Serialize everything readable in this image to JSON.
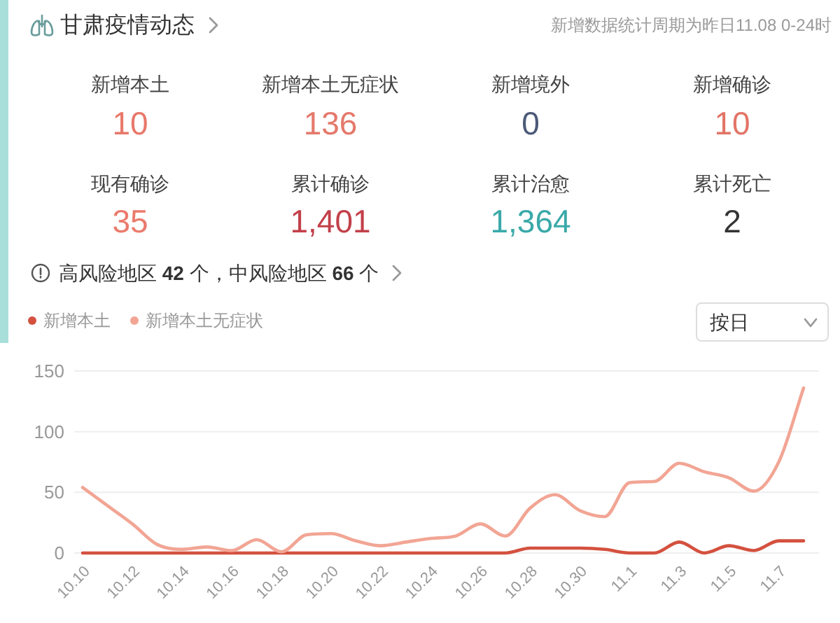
{
  "chart_data": [
    {
      "type": "other",
      "title": "甘肃疫情动态",
      "subtitle": "新增数据统计周期为昨日11.08 0-24时",
      "categories": [
        "新增本土",
        "新增本土无症状",
        "新增境外",
        "新增确诊",
        "现有确诊",
        "累计确诊",
        "累计治愈",
        "累计死亡"
      ],
      "value_labels": [
        "10",
        "136",
        "0",
        "10",
        "35",
        "1,401",
        "1,364",
        "2"
      ],
      "colors": [
        "#e8786a",
        "#e4796b",
        "#4c5a78",
        "#e27466",
        "#ea7b6d",
        "#c2404a",
        "#3aa9a9",
        "#333333"
      ],
      "annotations": [
        "高风险地区 **42** 个，中风险地区 **66** 个"
      ]
    },
    {
      "type": "line",
      "categories": [
        "10.10",
        null,
        "10.12",
        null,
        "10.14",
        null,
        "10.16",
        null,
        "10.18",
        null,
        "10.20",
        null,
        "10.22",
        null,
        "10.24",
        null,
        "10.26",
        null,
        "10.28",
        null,
        "10.30",
        null,
        "11.1",
        null,
        "11.3",
        null,
        "11.5",
        null,
        "11.7",
        null
      ],
      "series": [
        {
          "name": "新增本土",
          "color": "#d4513f",
          "values": [
            0,
            0,
            0,
            0,
            0,
            0,
            0,
            0,
            0,
            0,
            0,
            0,
            0,
            0,
            0,
            0,
            0,
            0,
            4,
            4,
            4,
            3,
            0,
            0,
            9,
            0,
            6,
            2,
            10,
            10
          ]
        },
        {
          "name": "新增本土无症状",
          "color": "#f2a594",
          "values": [
            54,
            39,
            24,
            7,
            3,
            5,
            2,
            11,
            1,
            15,
            16,
            10,
            6,
            9,
            12,
            14,
            24,
            14,
            37,
            48,
            35,
            30,
            58,
            59,
            74,
            67,
            62,
            51,
            75,
            136
          ]
        }
      ],
      "ylim": [
        0,
        150
      ],
      "yticks": [
        0,
        50,
        100,
        150
      ],
      "grid": "y",
      "legend": "top left",
      "line_style": "solid",
      "annotations": [
        "按日"
      ]
    }
  ]
}
